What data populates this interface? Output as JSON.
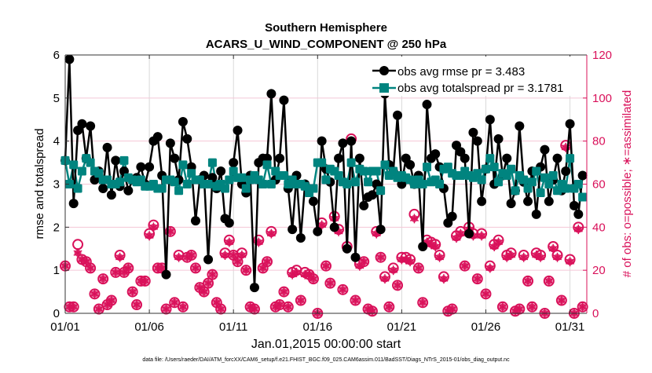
{
  "chart_data": {
    "type": "line",
    "title": "Southern Hemisphere",
    "subtitle": "ACARS_U_WIND_COMPONENT @ 250 hPa",
    "xlabel": "Jan.01,2015 00:00:00 start",
    "ylabel": "rmse and totalspread",
    "y2label": "# of obs: o=possible; ∗=assimilated",
    "footer": "data file: /Users/raeder/DAI/ATM_forcXX/CAM6_setup/f.e21.FHIST_BGC.f09_025.CAM6assim.011/BadSST/Diags_NTrS_2015-01/obs_diag_output.nc",
    "xlim": [
      1,
      32
    ],
    "ylim": [
      0,
      6
    ],
    "y2lim": [
      0,
      120
    ],
    "xticks": [
      1,
      6,
      11,
      16,
      21,
      26,
      31
    ],
    "xtick_labels": [
      "01/01",
      "01/06",
      "01/11",
      "01/16",
      "01/21",
      "01/26",
      "01/31"
    ],
    "yticks": [
      "0",
      "1",
      "2",
      "3",
      "4",
      "5",
      "6"
    ],
    "y2ticks": [
      "0",
      "20",
      "40",
      "60",
      "80",
      "100",
      "120"
    ],
    "grid": true,
    "legend_placement": "top-right",
    "colors": {
      "rmse": "#000000",
      "spread": "#00847f",
      "obs": "#d9115a",
      "grid_x": "#d9d9d9",
      "grid_y": "#f4c6d6"
    },
    "x": [
      1,
      1.25,
      1.5,
      1.75,
      2,
      2.25,
      2.5,
      2.75,
      3,
      3.25,
      3.5,
      3.75,
      4,
      4.25,
      4.5,
      4.75,
      5,
      5.25,
      5.5,
      5.75,
      6,
      6.25,
      6.5,
      6.75,
      7,
      7.25,
      7.5,
      7.75,
      8,
      8.25,
      8.5,
      8.75,
      9,
      9.25,
      9.5,
      9.75,
      10,
      10.25,
      10.5,
      10.75,
      11,
      11.25,
      11.5,
      11.75,
      12,
      12.25,
      12.5,
      12.75,
      13,
      13.25,
      13.5,
      13.75,
      14,
      14.25,
      14.5,
      14.75,
      15,
      15.25,
      15.5,
      15.75,
      16,
      16.25,
      16.5,
      16.75,
      17,
      17.25,
      17.5,
      17.75,
      18,
      18.25,
      18.5,
      18.75,
      19,
      19.25,
      19.5,
      19.75,
      20,
      20.25,
      20.5,
      20.75,
      21,
      21.25,
      21.5,
      21.75,
      22,
      22.25,
      22.5,
      22.75,
      23,
      23.25,
      23.5,
      23.75,
      24,
      24.25,
      24.5,
      24.75,
      25,
      25.25,
      25.5,
      25.75,
      26,
      26.25,
      26.5,
      26.75,
      27,
      27.25,
      27.5,
      27.75,
      28,
      28.25,
      28.5,
      28.75,
      29,
      29.25,
      29.5,
      29.75,
      30,
      30.25,
      30.5,
      30.75,
      31,
      31.25,
      31.5,
      31.75
    ],
    "series": [
      {
        "name": "obs avg rmse pr = 3.483",
        "axis": "left",
        "marker": "circle",
        "values": [
          3.55,
          5.9,
          2.55,
          4.25,
          4.4,
          3.6,
          4.35,
          3.1,
          3.3,
          2.9,
          3.85,
          2.75,
          3.55,
          2.95,
          3.3,
          2.85,
          3.1,
          3.15,
          3.4,
          3.0,
          3.4,
          4.0,
          4.1,
          3.2,
          0.9,
          3.95,
          3.6,
          3.1,
          4.45,
          4.05,
          3.4,
          2.15,
          3.1,
          3.2,
          1.25,
          3.15,
          2.9,
          3.3,
          2.2,
          2.1,
          3.5,
          4.25,
          3.0,
          2.8,
          3.2,
          0.6,
          3.5,
          3.6,
          3.6,
          5.1,
          3.1,
          3.6,
          4.95,
          2.9,
          1.95,
          3.2,
          1.75,
          3.0,
          2.85,
          2.6,
          1.9,
          4.0,
          3.35,
          3.05,
          2.0,
          3.6,
          3.95,
          1.5,
          4.0,
          1.3,
          3.6,
          2.5,
          2.7,
          2.75,
          3.0,
          1.95,
          5.1,
          3.45,
          3.3,
          4.6,
          3.0,
          3.6,
          3.45,
          3.0,
          3.2,
          1.55,
          4.85,
          3.6,
          3.7,
          3.4,
          2.9,
          2.1,
          2.25,
          3.9,
          3.75,
          3.6,
          1.85,
          4.2,
          4.0,
          2.6,
          3.35,
          4.5,
          3.0,
          4.05,
          3.2,
          3.6,
          2.55,
          2.85,
          4.35,
          3.05,
          2.6,
          3.3,
          2.3,
          3.4,
          3.8,
          2.6,
          3.1,
          3.6,
          2.85,
          3.3,
          4.4,
          2.5,
          2.3,
          3.2
        ]
      },
      {
        "name": "obs avg totalspread pr = 3.1781",
        "axis": "left",
        "marker": "square",
        "values": [
          3.55,
          3.0,
          3.45,
          2.9,
          3.3,
          3.6,
          3.5,
          3.3,
          3.25,
          3.1,
          3.1,
          3.0,
          3.0,
          3.05,
          3.55,
          3.15,
          3.1,
          3.05,
          3.1,
          2.95,
          2.95,
          3.0,
          2.9,
          2.9,
          3.1,
          3.1,
          3.05,
          2.85,
          3.45,
          3.0,
          3.25,
          3.1,
          3.1,
          3.0,
          3.0,
          3.5,
          2.95,
          3.0,
          2.9,
          3.1,
          3.3,
          3.15,
          3.15,
          2.9,
          3.1,
          3.2,
          3.1,
          3.0,
          3.45,
          3.0,
          3.3,
          3.2,
          3.2,
          3.0,
          3.1,
          3.0,
          3.0,
          2.95,
          2.8,
          2.9,
          3.5,
          3.5,
          3.1,
          3.35,
          3.3,
          3.2,
          3.05,
          3.0,
          3.5,
          3.05,
          3.35,
          3.3,
          3.05,
          3.3,
          3.3,
          2.85,
          3.45,
          3.2,
          3.3,
          3.15,
          3.2,
          3.15,
          3.1,
          3.0,
          3.1,
          3.0,
          3.4,
          3.05,
          3.1,
          3.0,
          3.35,
          3.4,
          3.25,
          3.2,
          3.2,
          3.3,
          3.2,
          3.15,
          3.25,
          3.1,
          3.35,
          3.6,
          3.4,
          3.05,
          3.25,
          3.2,
          3.35,
          2.85,
          3.2,
          3.1,
          2.9,
          3.05,
          3.3,
          2.8,
          3.15,
          3.0,
          3.2,
          2.85,
          3.0,
          2.9,
          3.6,
          2.9,
          3.0,
          2.7
        ]
      },
      {
        "name": "obs possible",
        "axis": "right",
        "marker": "open-circle",
        "values": [
          22,
          3,
          3,
          32,
          25,
          24,
          21,
          9,
          2,
          16,
          4,
          6,
          19,
          27,
          19,
          21,
          10,
          4,
          15,
          15,
          37,
          41,
          21,
          21,
          2,
          38,
          5,
          27,
          3,
          26,
          27,
          21,
          12,
          10,
          14,
          18,
          5,
          2,
          28,
          34,
          27,
          24,
          28,
          20,
          3,
          2,
          34,
          21,
          24,
          38,
          3,
          4,
          10,
          3,
          19,
          20,
          6,
          19,
          18,
          16,
          0,
          42,
          22,
          14,
          45,
          39,
          11,
          31,
          81,
          6,
          23,
          24,
          2,
          1,
          38,
          26,
          17,
          3,
          21,
          13,
          26,
          26,
          25,
          46,
          21,
          5,
          34,
          33,
          32,
          27,
          17,
          1,
          2,
          36,
          38,
          22,
          40,
          37,
          16,
          37,
          9,
          22,
          32,
          34,
          3,
          27,
          28,
          1,
          2,
          27,
          15,
          3,
          28,
          27,
          0,
          15,
          31,
          27,
          6,
          78,
          25,
          0,
          40,
          3
        ]
      },
      {
        "name": "obs assimilated",
        "axis": "right",
        "marker": "asterisk",
        "values": [
          22,
          3,
          3,
          28,
          25,
          24,
          21,
          9,
          2,
          16,
          4,
          6,
          19,
          26,
          19,
          21,
          10,
          4,
          15,
          15,
          36,
          40,
          21,
          21,
          2,
          38,
          5,
          26,
          3,
          26,
          27,
          21,
          12,
          10,
          14,
          18,
          5,
          2,
          27,
          33,
          27,
          24,
          27,
          20,
          3,
          2,
          33,
          21,
          24,
          37,
          3,
          4,
          10,
          3,
          18,
          19,
          6,
          18,
          18,
          16,
          0,
          41,
          22,
          14,
          44,
          38,
          11,
          30,
          80,
          6,
          22,
          24,
          2,
          1,
          37,
          26,
          16,
          3,
          20,
          13,
          25,
          25,
          24,
          44,
          21,
          5,
          33,
          32,
          31,
          26,
          16,
          1,
          2,
          35,
          37,
          22,
          39,
          36,
          16,
          36,
          9,
          21,
          31,
          33,
          3,
          26,
          27,
          1,
          2,
          26,
          15,
          3,
          27,
          26,
          0,
          15,
          30,
          26,
          6,
          77,
          24,
          0,
          39,
          3
        ]
      }
    ]
  }
}
